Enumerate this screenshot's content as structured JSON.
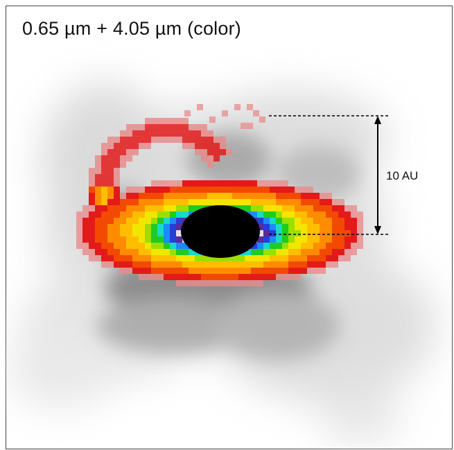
{
  "figure": {
    "caption": "0.65 µm + 4.05 µm (color)",
    "scale_bar": {
      "label": "10 AU"
    }
  },
  "colors": {
    "border": "#444444",
    "background": "#ffffff",
    "nebula_gray": "#8a8a8a",
    "core": "#000000",
    "colormap": [
      "#e88c8c",
      "#e31a1a",
      "#f24a00",
      "#ff8c00",
      "#ffbf00",
      "#f2e600",
      "#9adf00",
      "#1fcc1f",
      "#19d9c8",
      "#1a8cff",
      "#2a3cd6",
      "#5a2a9a"
    ]
  }
}
